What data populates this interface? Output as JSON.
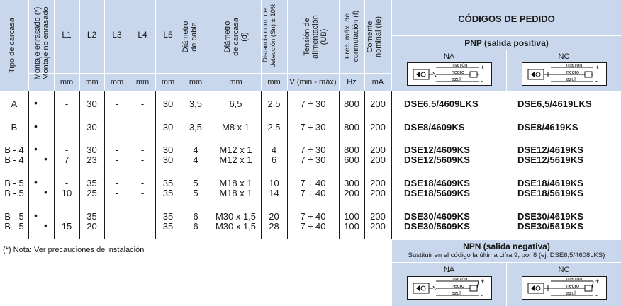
{
  "header": {
    "tipo": "Tipo de carcasa",
    "montaje": [
      "Montaje enrasado (*)",
      "Montaje no enrasado"
    ],
    "cols": [
      "L1",
      "L2",
      "L3",
      "L4",
      "L5"
    ],
    "diam_cable": [
      "Diámetro",
      "de cable"
    ],
    "diam_carcasa": [
      "Diámetro",
      "de carcasa",
      "(d)"
    ],
    "distancia": [
      "Distancia nom. de",
      "detección (Sn) ± 10%"
    ],
    "tension": [
      "Tensión de",
      "alimentación",
      "(UB)"
    ],
    "frec": [
      "Frec. máx. de",
      "conmutación (f)"
    ],
    "corriente": [
      "Corriente",
      "nominal (Ie)"
    ],
    "codigos_title": "CÓDIGOS DE PEDIDO",
    "pnp_title": "PNP (salida positiva)",
    "na": "NA",
    "nc": "NC"
  },
  "units": [
    "mm",
    "mm",
    "mm",
    "mm",
    "mm",
    "mm",
    "mm",
    "mm",
    "V (min - máx)",
    "Hz",
    "mA"
  ],
  "schematic": {
    "wire1": "marrón",
    "wire2": "negro",
    "wire3": "azul",
    "plus": "+",
    "minus": "-"
  },
  "rows": [
    {
      "tipo": "A",
      "dot1": "•",
      "dot2": "",
      "l1": "-",
      "l2": "30",
      "l3": "-",
      "l4": "-",
      "l5": "30",
      "dcable": "3,5",
      "dcarcasa": "6,5",
      "dist": "2,5",
      "tension": "7 ÷ 30",
      "frec": "800",
      "corr": "200",
      "na": "DSE6,5/4609LKS",
      "nc": "DSE6,5/4619LKS"
    },
    {
      "tipo": "B",
      "dot1": "•",
      "dot2": "",
      "l1": "-",
      "l2": "30",
      "l3": "-",
      "l4": "-",
      "l5": "30",
      "dcable": "3,5",
      "dcarcasa": "M8 x 1",
      "dist": "2,5",
      "tension": "7 ÷ 30",
      "frec": "800",
      "corr": "200",
      "na": "DSE8/4609KS",
      "nc": "DSE8/4619KS"
    },
    {
      "tipo": "B - 4",
      "dot1": "•",
      "dot2": "",
      "l1": "-",
      "l2": "30",
      "l3": "-",
      "l4": "-",
      "l5": "30",
      "dcable": "4",
      "dcarcasa": "M12 x 1",
      "dist": "4",
      "tension": "7 ÷ 30",
      "frec": "800",
      "corr": "200",
      "na": "DSE12/4609KS",
      "nc": "DSE12/4619KS"
    },
    {
      "tipo": "B - 4",
      "dot1": "",
      "dot2": "•",
      "l1": "7",
      "l2": "23",
      "l3": "-",
      "l4": "-",
      "l5": "30",
      "dcable": "4",
      "dcarcasa": "M12 x 1",
      "dist": "6",
      "tension": "7 ÷ 30",
      "frec": "600",
      "corr": "200",
      "na": "DSE12/5609KS",
      "nc": "DSE12/5619KS"
    },
    {
      "tipo": "B - 5",
      "dot1": "•",
      "dot2": "",
      "l1": "-",
      "l2": "35",
      "l3": "-",
      "l4": "-",
      "l5": "35",
      "dcable": "5",
      "dcarcasa": "M18 x 1",
      "dist": "10",
      "tension": "7 ÷ 40",
      "frec": "300",
      "corr": "200",
      "na": "DSE18/4609KS",
      "nc": "DSE18/4619KS"
    },
    {
      "tipo": "B - 5",
      "dot1": "",
      "dot2": "•",
      "l1": "10",
      "l2": "25",
      "l3": "-",
      "l4": "-",
      "l5": "35",
      "dcable": "5",
      "dcarcasa": "M18 x 1",
      "dist": "14",
      "tension": "7 ÷ 40",
      "frec": "200",
      "corr": "200",
      "na": "DSE18/5609KS",
      "nc": "DSE18/5619KS"
    },
    {
      "tipo": "B - 5",
      "dot1": "•",
      "dot2": "",
      "l1": "-",
      "l2": "35",
      "l3": "-",
      "l4": "-",
      "l5": "35",
      "dcable": "6",
      "dcarcasa": "M30 x 1,5",
      "dist": "20",
      "tension": "7 ÷ 40",
      "frec": "100",
      "corr": "200",
      "na": "DSE30/4609KS",
      "nc": "DSE30/4619KS"
    },
    {
      "tipo": "B - 5",
      "dot1": "",
      "dot2": "•",
      "l1": "15",
      "l2": "20",
      "l3": "-",
      "l4": "-",
      "l5": "35",
      "dcable": "6",
      "dcarcasa": "M30 x 1,5",
      "dist": "28",
      "tension": "7 ÷ 40",
      "frec": "100",
      "corr": "200",
      "na": "DSE30/5609KS",
      "nc": "DSE30/5619KS"
    }
  ],
  "footnote": "(*) Nota: Ver precauciones de instalación",
  "npn": {
    "title": "NPN (salida negativa)",
    "subtitle": "Sustituir en el código la última cifra 9, por 8 (ej. DSE6,5/4608LKS)",
    "na": "NA",
    "nc": "NC"
  }
}
